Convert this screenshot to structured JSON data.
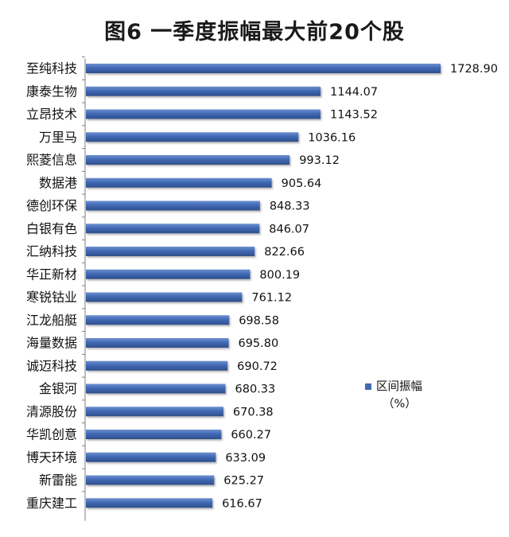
{
  "chart_data": {
    "type": "bar",
    "orientation": "horizontal",
    "title": "图6 一季度振幅最大前20个股",
    "categories": [
      "至纯科技",
      "康泰生物",
      "立昂技术",
      "万里马",
      "熙菱信息",
      "数据港",
      "德创环保",
      "白银有色",
      "汇纳科技",
      "华正新材",
      "寒锐钴业",
      "江龙船艇",
      "海量数据",
      "诚迈科技",
      "金银河",
      "清源股份",
      "华凯创意",
      "博天环境",
      "新雷能",
      "重庆建工"
    ],
    "series": [
      {
        "name": "区间振幅",
        "unit": "（%）",
        "color": "#4169b4",
        "values": [
          1728.9,
          1144.07,
          1143.52,
          1036.16,
          993.12,
          905.64,
          848.33,
          846.07,
          822.66,
          800.19,
          761.12,
          698.58,
          695.8,
          690.72,
          680.33,
          670.38,
          660.27,
          633.09,
          625.27,
          616.67
        ],
        "labels": [
          "1728.90",
          "1144.07",
          "1143.52",
          "1036.16",
          "993.12",
          "905.64",
          "848.33",
          "846.07",
          "822.66",
          "800.19",
          "761.12",
          "698.58",
          "695.80",
          "690.72",
          "680.33",
          "670.38",
          "660.27",
          "633.09",
          "625.27",
          "616.67"
        ]
      }
    ],
    "xlim": [
      0,
      1728.9
    ],
    "grid": false,
    "legend_position": "right"
  }
}
